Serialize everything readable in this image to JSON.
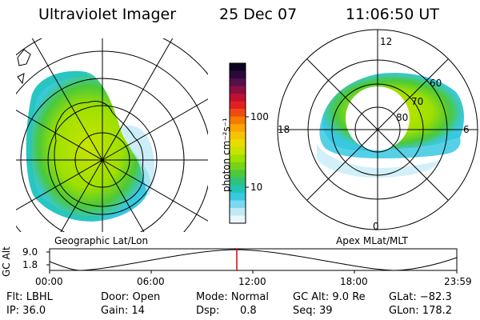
{
  "header": {
    "instrument": "Ultraviolet Imager",
    "date": "25 Dec 07",
    "time": "11:06:50 UT"
  },
  "geo_map": {
    "label": "Geographic Lat/Lon"
  },
  "apex_map": {
    "label": "Apex MLat/MLT",
    "mlt_labels": [
      "12",
      "18",
      "6",
      "0"
    ],
    "mlat_labels": [
      "60",
      "70",
      "80"
    ]
  },
  "colorbar": {
    "label": "photon cm⁻²s⁻¹",
    "ticks": [
      "100",
      "10"
    ],
    "colors": [
      "#0b0520",
      "#2a0a3a",
      "#55104a",
      "#8a1043",
      "#c01030",
      "#e02020",
      "#f04a10",
      "#f57c00",
      "#fba400",
      "#f5c400",
      "#e8dc00",
      "#c8e400",
      "#9ee000",
      "#74d41a",
      "#4cc83a",
      "#2ec27a",
      "#22c4b4",
      "#38c8e0",
      "#7cd8ef",
      "#bfeaf6",
      "#eaf6fb"
    ]
  },
  "timeline": {
    "axis_label": "GC Alt",
    "y_ticks": [
      "9.0",
      "1.8"
    ],
    "x_ticks": [
      "00:00",
      "06:00",
      "12:00",
      "18:00",
      "23:59"
    ],
    "marker_color": "#e00000"
  },
  "footer": {
    "flt": "Flt: LBHL",
    "ip": "IP: 36.0",
    "door": "Door: Open",
    "gain": "Gain: 14",
    "mode": "Mode: Normal",
    "dsp_label": "Dsp:",
    "dsp_value": "0.8",
    "gc_alt": "GC Alt: 9.0 Re",
    "seq": "Seq: 39",
    "glat": "GLat: −82.3",
    "glon": "GLon: 178.2"
  }
}
